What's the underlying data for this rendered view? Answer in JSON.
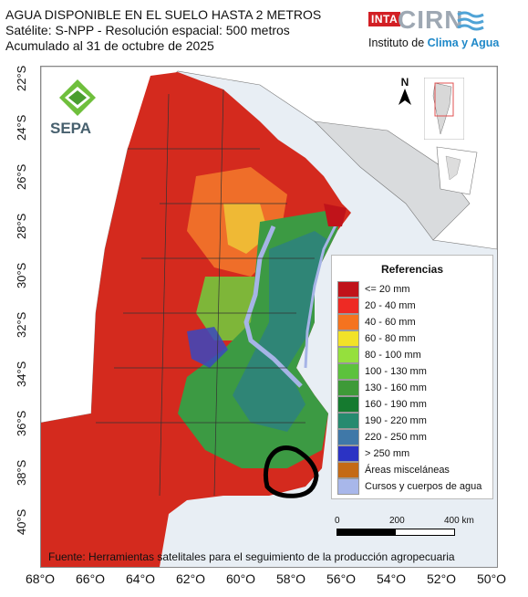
{
  "header": {
    "line1": "AGUA DISPONIBLE EN EL SUELO HASTA 2 METROS",
    "line2": "Satélite: S-NPP - Resolución espacial: 500 metros",
    "line3": "Acumulado al 31 de octubre de 2025"
  },
  "logos": {
    "inta": "INTA",
    "cirn": "CIRN",
    "institute_prefix": "Instituto de ",
    "institute_highlight": "Clima y Agua",
    "sepa": "SEPA"
  },
  "north_label": "N",
  "legend": {
    "title": "Referencias",
    "items": [
      {
        "label": "<= 20 mm",
        "color": "#c0131a"
      },
      {
        "label": "20 - 40 mm",
        "color": "#ee2a24"
      },
      {
        "label": "40 - 60 mm",
        "color": "#f5731f"
      },
      {
        "label": "60 - 80 mm",
        "color": "#f2e228"
      },
      {
        "label": "80 - 100 mm",
        "color": "#95e03d"
      },
      {
        "label": "100 - 130 mm",
        "color": "#5cc23c"
      },
      {
        "label": "130 - 160 mm",
        "color": "#3e9a38"
      },
      {
        "label": "160 - 190 mm",
        "color": "#157a2f"
      },
      {
        "label": "190 - 220 mm",
        "color": "#268a6f"
      },
      {
        "label": "220 - 250 mm",
        "color": "#3f78a8"
      },
      {
        "label": "> 250 mm",
        "color": "#2b33c4"
      },
      {
        "label": "Áreas misceláneas",
        "color": "#c46a14"
      },
      {
        "label": "Cursos y cuerpos de agua",
        "color": "#a8b7ea"
      }
    ]
  },
  "scale": {
    "l0": "0",
    "l1": "200",
    "l2": "400 km"
  },
  "latitudes": [
    "22°S",
    "24°S",
    "26°S",
    "28°S",
    "30°S",
    "32°S",
    "34°S",
    "36°S",
    "38°S",
    "40°S"
  ],
  "longitudes": [
    "68°O",
    "66°O",
    "64°O",
    "62°O",
    "60°O",
    "58°O",
    "56°O",
    "54°O",
    "52°O",
    "50°O"
  ],
  "source": "Fuente: Herramientas satelitales para el seguimiento de la producción agropecuaria"
}
